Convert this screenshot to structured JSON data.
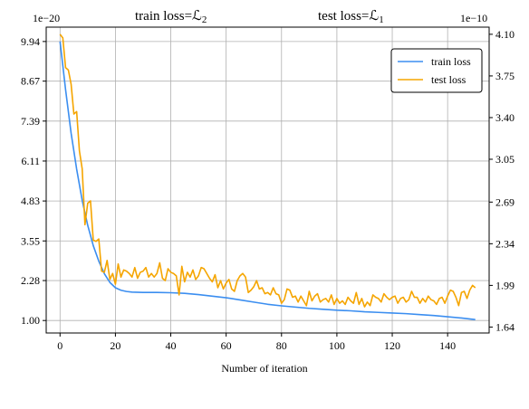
{
  "chart_data": {
    "type": "line",
    "title_left": "train loss=ℒ",
    "title_left_sub": "2",
    "title_right": "test loss=ℒ",
    "title_right_sub": "1",
    "xlabel": "Number of iteration",
    "offset_left": "1e−20",
    "offset_right": "1e−10",
    "xlim": [
      -5,
      155
    ],
    "xticks": [
      0,
      20,
      40,
      60,
      80,
      100,
      120,
      140
    ],
    "y_left": {
      "lim": [
        0.6,
        10.4
      ],
      "ticks": [
        1.0,
        2.28,
        3.55,
        4.83,
        6.11,
        7.39,
        8.67,
        9.94
      ],
      "ticklabels": [
        "1.00",
        "2.28",
        "3.55",
        "4.83",
        "6.11",
        "7.39",
        "8.67",
        "9.94"
      ]
    },
    "y_right": {
      "lim": [
        1.59,
        4.16
      ],
      "ticks": [
        1.64,
        1.99,
        2.34,
        2.69,
        3.05,
        3.4,
        3.75,
        4.1
      ],
      "ticklabels": [
        "1.64",
        "1.99",
        "2.34",
        "2.69",
        "3.05",
        "3.40",
        "3.75",
        "4.10"
      ]
    },
    "legend_position": "top-right",
    "series": [
      {
        "name": "train loss",
        "axis": "left",
        "color": "#3b8ef0",
        "x": [
          0,
          2,
          4,
          6,
          8,
          10,
          12,
          14,
          16,
          18,
          20,
          22,
          24,
          26,
          30,
          35,
          40,
          45,
          50,
          55,
          60,
          65,
          70,
          75,
          80,
          85,
          90,
          95,
          100,
          105,
          110,
          115,
          120,
          125,
          130,
          135,
          140,
          145,
          150
        ],
        "y": [
          9.94,
          8.4,
          7.0,
          5.85,
          4.85,
          4.05,
          3.4,
          2.9,
          2.5,
          2.22,
          2.05,
          1.97,
          1.93,
          1.91,
          1.9,
          1.9,
          1.89,
          1.87,
          1.83,
          1.78,
          1.73,
          1.66,
          1.59,
          1.52,
          1.47,
          1.43,
          1.39,
          1.36,
          1.33,
          1.31,
          1.28,
          1.26,
          1.24,
          1.22,
          1.19,
          1.16,
          1.12,
          1.08,
          1.03
        ]
      },
      {
        "name": "test loss",
        "axis": "right",
        "color": "#f5a500",
        "x": [
          0,
          1,
          2,
          3,
          4,
          5,
          6,
          7,
          8,
          9,
          10,
          11,
          12,
          13,
          14,
          15,
          16,
          17,
          18,
          19,
          20,
          21,
          22,
          23,
          24,
          25,
          26,
          27,
          28,
          29,
          30,
          31,
          32,
          33,
          34,
          35,
          36,
          37,
          38,
          39,
          40,
          41,
          42,
          43,
          44,
          45,
          46,
          47,
          48,
          49,
          50,
          51,
          52,
          53,
          54,
          55,
          56,
          57,
          58,
          59,
          60,
          61,
          62,
          63,
          64,
          65,
          66,
          67,
          68,
          69,
          70,
          71,
          72,
          73,
          74,
          75,
          76,
          77,
          78,
          79,
          80,
          81,
          82,
          83,
          84,
          85,
          86,
          87,
          88,
          89,
          90,
          91,
          92,
          93,
          94,
          95,
          96,
          97,
          98,
          99,
          100,
          101,
          102,
          103,
          104,
          105,
          106,
          107,
          108,
          109,
          110,
          111,
          112,
          113,
          114,
          115,
          116,
          117,
          118,
          119,
          120,
          121,
          122,
          123,
          124,
          125,
          126,
          127,
          128,
          129,
          130,
          131,
          132,
          133,
          134,
          135,
          136,
          137,
          138,
          139,
          140,
          141,
          142,
          143,
          144,
          145,
          146,
          147,
          148,
          149,
          150
        ],
        "y": [
          4.1,
          4.07,
          3.82,
          3.8,
          3.68,
          3.43,
          3.45,
          3.12,
          2.97,
          2.5,
          2.68,
          2.7,
          2.37,
          2.36,
          2.38,
          2.11,
          2.1,
          2.2,
          2.04,
          2.09,
          2.0,
          2.17,
          2.06,
          2.12,
          2.11,
          2.09,
          2.06,
          2.14,
          2.05,
          2.1,
          2.11,
          2.14,
          2.06,
          2.09,
          2.06,
          2.09,
          2.18,
          2.05,
          2.03,
          2.13,
          2.1,
          2.09,
          2.07,
          1.91,
          2.15,
          2.02,
          2.1,
          2.06,
          2.12,
          2.04,
          2.07,
          2.14,
          2.13,
          2.09,
          2.05,
          2.02,
          2.08,
          1.97,
          2.03,
          1.96,
          2.01,
          2.04,
          1.96,
          1.94,
          2.03,
          2.07,
          2.09,
          2.06,
          1.93,
          1.95,
          1.98,
          2.03,
          1.96,
          1.97,
          1.92,
          1.93,
          1.91,
          1.97,
          1.92,
          1.91,
          1.84,
          1.87,
          1.96,
          1.95,
          1.89,
          1.9,
          1.85,
          1.9,
          1.86,
          1.82,
          1.94,
          1.86,
          1.9,
          1.92,
          1.85,
          1.87,
          1.88,
          1.85,
          1.91,
          1.83,
          1.88,
          1.84,
          1.86,
          1.83,
          1.89,
          1.86,
          1.84,
          1.93,
          1.83,
          1.88,
          1.81,
          1.85,
          1.82,
          1.91,
          1.89,
          1.88,
          1.85,
          1.92,
          1.89,
          1.87,
          1.89,
          1.9,
          1.84,
          1.88,
          1.89,
          1.85,
          1.87,
          1.94,
          1.89,
          1.89,
          1.84,
          1.88,
          1.85,
          1.9,
          1.87,
          1.86,
          1.83,
          1.88,
          1.89,
          1.84,
          1.9,
          1.95,
          1.94,
          1.89,
          1.82,
          1.93,
          1.94,
          1.88,
          1.95,
          1.99,
          1.97
        ]
      }
    ]
  }
}
